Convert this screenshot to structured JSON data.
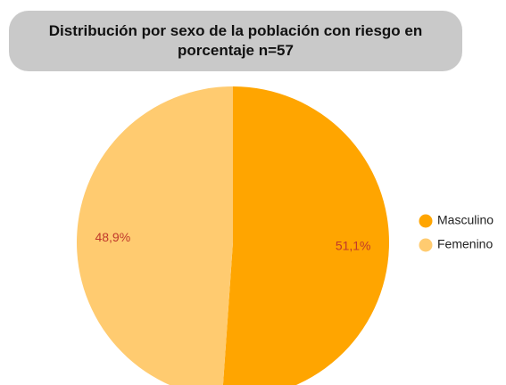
{
  "chart_data": {
    "type": "pie",
    "title": "Distribución por sexo de la población con riesgo en porcentaje n=57",
    "categories": [
      "Masculino",
      "Femenino"
    ],
    "values": [
      51.1,
      48.9
    ],
    "value_labels": [
      "51,1%",
      "48,9%"
    ],
    "colors": [
      "#ffa500",
      "#ffcb70"
    ],
    "legend": "right"
  }
}
